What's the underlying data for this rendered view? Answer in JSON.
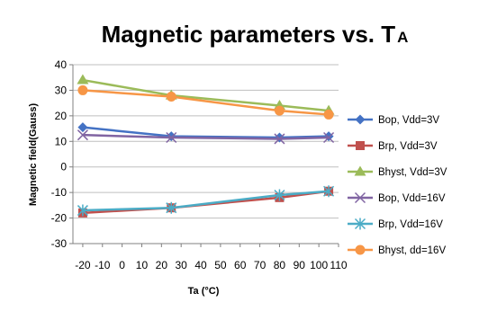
{
  "chart_data": {
    "type": "line",
    "title_main": "Magnetic parameters vs. T",
    "title_sub": "A",
    "xlabel": "Ta (°C)",
    "ylabel": "Magnetic field(Gauss)",
    "xlim": [
      -25,
      110
    ],
    "ylim": [
      -30,
      40
    ],
    "x_ticks": [
      -20,
      -10,
      0,
      10,
      20,
      30,
      40,
      50,
      60,
      70,
      80,
      90,
      100,
      110
    ],
    "y_ticks": [
      -30,
      -20,
      -10,
      0,
      10,
      20,
      30,
      40
    ],
    "grid": "horizontal",
    "legend_position": "right",
    "series": [
      {
        "name": "Bop, Vdd=3V",
        "color": "#4472C4",
        "marker": "diamond",
        "x": [
          -20,
          25,
          80,
          105
        ],
        "y": [
          15.5,
          12,
          11.5,
          12
        ]
      },
      {
        "name": "Brp, Vdd=3V",
        "color": "#C0504D",
        "marker": "square",
        "x": [
          -20,
          25,
          80,
          105
        ],
        "y": [
          -18,
          -16,
          -12,
          -9.5
        ]
      },
      {
        "name": "Bhyst, Vdd=3V",
        "color": "#9BBB59",
        "marker": "triangle",
        "x": [
          -20,
          25,
          80,
          105
        ],
        "y": [
          34,
          28,
          24,
          22
        ]
      },
      {
        "name": "Bop, Vdd=16V",
        "color": "#8064A2",
        "marker": "x",
        "x": [
          -20,
          25,
          80,
          105
        ],
        "y": [
          12.5,
          11.5,
          11,
          11.5
        ]
      },
      {
        "name": "Brp, Vdd=16V",
        "color": "#4BACC6",
        "marker": "star",
        "x": [
          -20,
          25,
          80,
          105
        ],
        "y": [
          -17,
          -16,
          -11,
          -9.5
        ]
      },
      {
        "name": "Bhyst, dd=16V",
        "color": "#F79646",
        "marker": "circle",
        "x": [
          -20,
          25,
          80,
          105
        ],
        "y": [
          30,
          27.5,
          22,
          20.5
        ]
      }
    ]
  }
}
